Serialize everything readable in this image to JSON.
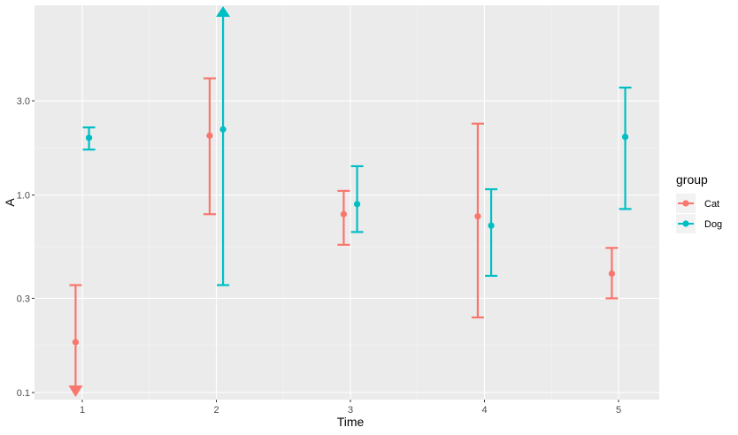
{
  "chart_data": {
    "type": "errorbar",
    "xlabel": "Time",
    "ylabel": "A",
    "y_scale": "log10",
    "ylim": [
      0.1,
      8.5
    ],
    "xlim": [
      0.6,
      5.4
    ],
    "x_ticks": [
      1,
      2,
      3,
      4,
      5
    ],
    "x_tick_labels": [
      "1",
      "2",
      "3",
      "4",
      "5"
    ],
    "y_ticks": [
      0.1,
      0.3,
      1.0,
      3.0
    ],
    "y_tick_labels": [
      "0.1",
      "0.3",
      "1.0",
      "3.0"
    ],
    "grid": true,
    "legend": {
      "title": "group",
      "position": "right"
    },
    "series": [
      {
        "name": "Cat",
        "color": "#F8766D",
        "dodge": -0.05,
        "points": [
          {
            "x": 1,
            "y": 0.18,
            "lower": 0.1,
            "upper": 0.35,
            "lower_truncated": true,
            "upper_truncated": false
          },
          {
            "x": 2,
            "y": 2.0,
            "lower": 0.8,
            "upper": 3.9,
            "lower_truncated": false,
            "upper_truncated": false
          },
          {
            "x": 3,
            "y": 0.8,
            "lower": 0.56,
            "upper": 1.05,
            "lower_truncated": false,
            "upper_truncated": false
          },
          {
            "x": 4,
            "y": 0.78,
            "lower": 0.24,
            "upper": 2.3,
            "lower_truncated": false,
            "upper_truncated": false
          },
          {
            "x": 5,
            "y": 0.4,
            "lower": 0.3,
            "upper": 0.54,
            "lower_truncated": false,
            "upper_truncated": false
          }
        ]
      },
      {
        "name": "Dog",
        "color": "#00BFC4",
        "dodge": 0.05,
        "points": [
          {
            "x": 1,
            "y": 1.95,
            "lower": 1.7,
            "upper": 2.2,
            "lower_truncated": false,
            "upper_truncated": false
          },
          {
            "x": 2,
            "y": 2.15,
            "lower": 0.35,
            "upper": 8.5,
            "lower_truncated": false,
            "upper_truncated": true
          },
          {
            "x": 3,
            "y": 0.9,
            "lower": 0.65,
            "upper": 1.4,
            "lower_truncated": false,
            "upper_truncated": false
          },
          {
            "x": 4,
            "y": 0.7,
            "lower": 0.39,
            "upper": 1.07,
            "lower_truncated": false,
            "upper_truncated": false
          },
          {
            "x": 5,
            "y": 1.97,
            "lower": 0.85,
            "upper": 3.5,
            "lower_truncated": false,
            "upper_truncated": false
          }
        ]
      }
    ]
  },
  "colors": {
    "panel_background": "#EBEBEB",
    "grid_major": "#FFFFFF",
    "tick_label": "#4D4D4D",
    "legend_key_background": "#F2F2F2"
  }
}
